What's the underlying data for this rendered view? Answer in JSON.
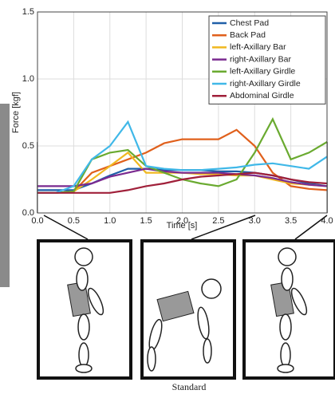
{
  "chart_data": {
    "type": "line",
    "ylabel": "Force [kgf]",
    "xlabel": "Time [s]",
    "caption": "Standard",
    "x": [
      0,
      0.25,
      0.5,
      0.75,
      1,
      1.25,
      1.5,
      1.75,
      2,
      2.25,
      2.5,
      2.75,
      3,
      3.25,
      3.5,
      3.75,
      4
    ],
    "xlim": [
      0,
      4
    ],
    "xticks": [
      {
        "value": 0,
        "label": "0.0"
      },
      0.5,
      {
        "value": 1,
        "label": "1.0"
      },
      1.5,
      {
        "value": 2,
        "label": "2.0"
      },
      2.5,
      {
        "value": 3,
        "label": "3.0"
      },
      3.5,
      {
        "value": 4,
        "label": "4.0"
      }
    ],
    "ylim": [
      0,
      1.5
    ],
    "yticks": [
      {
        "value": 0,
        "label": "0.0"
      },
      0.5,
      {
        "value": 1,
        "label": "1.0"
      },
      1.5
    ],
    "grid": true,
    "legend": "upper right",
    "series": [
      {
        "name": "Chest Pad",
        "color": "#1f5fa8",
        "values": [
          0.17,
          0.17,
          0.17,
          0.22,
          0.28,
          0.33,
          0.33,
          0.32,
          0.32,
          0.32,
          0.31,
          0.31,
          0.3,
          0.28,
          0.25,
          0.22,
          0.2
        ]
      },
      {
        "name": "Back Pad",
        "color": "#e0601c",
        "values": [
          0.15,
          0.15,
          0.16,
          0.3,
          0.35,
          0.4,
          0.45,
          0.52,
          0.55,
          0.55,
          0.55,
          0.62,
          0.5,
          0.3,
          0.2,
          0.18,
          0.17
        ]
      },
      {
        "name": "left-Axillary Bar",
        "color": "#f0b820",
        "values": [
          0.15,
          0.15,
          0.16,
          0.25,
          0.35,
          0.45,
          0.3,
          0.3,
          0.3,
          0.29,
          0.29,
          0.28,
          0.28,
          0.25,
          0.22,
          0.21,
          0.2
        ]
      },
      {
        "name": "right-Axillary Bar",
        "color": "#7a2a90",
        "values": [
          0.2,
          0.2,
          0.2,
          0.22,
          0.27,
          0.3,
          0.33,
          0.31,
          0.3,
          0.3,
          0.3,
          0.29,
          0.28,
          0.26,
          0.23,
          0.21,
          0.2
        ]
      },
      {
        "name": "left-Axillary Girdle",
        "color": "#6aaa30",
        "values": [
          0.15,
          0.15,
          0.16,
          0.4,
          0.45,
          0.47,
          0.35,
          0.3,
          0.25,
          0.22,
          0.2,
          0.25,
          0.45,
          0.7,
          0.4,
          0.45,
          0.53
        ]
      },
      {
        "name": "right-Axillary Girdle",
        "color": "#40b8e8",
        "values": [
          0.15,
          0.15,
          0.2,
          0.4,
          0.5,
          0.68,
          0.35,
          0.33,
          0.32,
          0.32,
          0.33,
          0.34,
          0.36,
          0.37,
          0.35,
          0.33,
          0.42
        ]
      },
      {
        "name": "Abdominal Girdle",
        "color": "#a0203a",
        "values": [
          0.15,
          0.15,
          0.15,
          0.15,
          0.15,
          0.17,
          0.2,
          0.22,
          0.25,
          0.27,
          0.28,
          0.29,
          0.3,
          0.28,
          0.25,
          0.23,
          0.22
        ]
      }
    ]
  }
}
